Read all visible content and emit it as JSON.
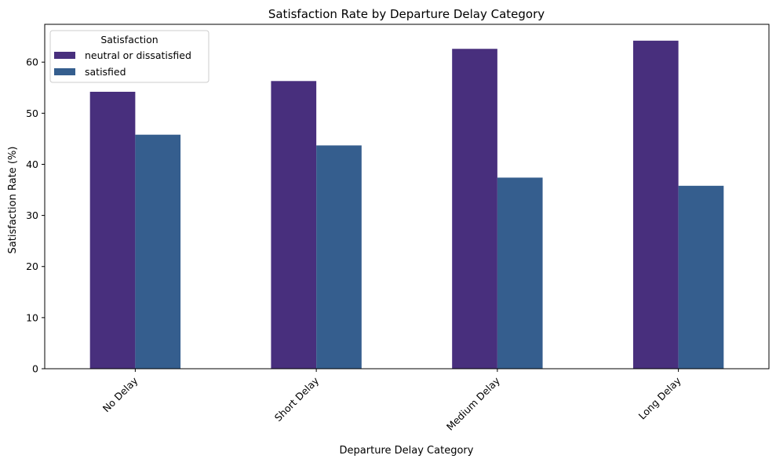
{
  "chart_data": {
    "type": "bar",
    "title": "Satisfaction Rate by Departure Delay Category",
    "xlabel": "Departure Delay Category",
    "ylabel": "Satisfaction Rate (%)",
    "categories": [
      "No Delay",
      "Short Delay",
      "Medium Delay",
      "Long Delay"
    ],
    "series": [
      {
        "name": "neutral or dissatisfied",
        "color": "#482f7d",
        "values": [
          54.2,
          56.3,
          62.6,
          64.2
        ]
      },
      {
        "name": "satisfied",
        "color": "#355e8e",
        "values": [
          45.8,
          43.7,
          37.4,
          35.8
        ]
      }
    ],
    "ylim": [
      0,
      67.4
    ],
    "yticks": [
      0,
      10,
      20,
      30,
      40,
      50,
      60
    ],
    "legend": {
      "title": "Satisfaction",
      "placement": "top-left"
    },
    "grid": false,
    "x_tick_rotation_deg": 45
  }
}
